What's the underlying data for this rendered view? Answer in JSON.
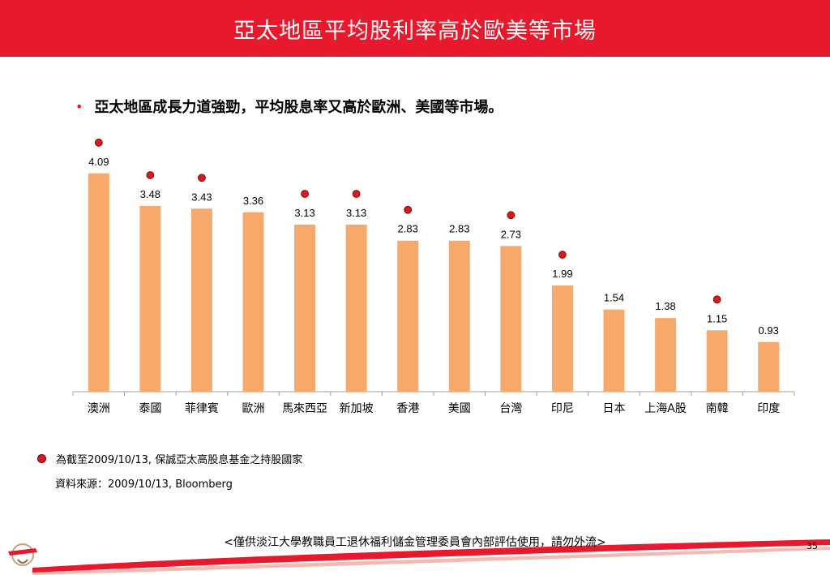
{
  "title": "亞太地區平均股利率高於歐美等市場",
  "bullet": "亞太地區成長力道強勁，平均股息率又高於歐洲、美國等市場。",
  "note": "為截至2009/10/13, 保誠亞太高股息基金之持股國家",
  "source": "資料來源：2009/10/13, Bloomberg",
  "footer": "<僅供淡江大學教職員工退休福利儲金管理委員會內部評估使用，請勿外流>",
  "page_number": "35",
  "colors": {
    "header": "#e8192c",
    "bar": "#f7a96b",
    "marker": "#d71920"
  },
  "chart_data": {
    "type": "bar",
    "categories": [
      "澳洲",
      "泰國",
      "菲律賓",
      "歐洲",
      "馬來西亞",
      "新加坡",
      "香港",
      "美國",
      "台灣",
      "印尼",
      "日本",
      "上海A股",
      "南韓",
      "印度"
    ],
    "values": [
      4.09,
      3.48,
      3.43,
      3.36,
      3.13,
      3.13,
      2.83,
      2.83,
      2.73,
      1.99,
      1.54,
      1.38,
      1.15,
      0.93
    ],
    "value_labels": [
      "4.09",
      "3.48",
      "3.43",
      "3.36",
      "3.13",
      "3.13",
      "2.83",
      "2.83",
      "2.73",
      "1.99",
      "1.54",
      "1.38",
      "1.15",
      "0.93"
    ],
    "holding_marker": [
      true,
      true,
      true,
      false,
      true,
      true,
      true,
      false,
      true,
      true,
      false,
      false,
      true,
      false
    ],
    "ylim": [
      0,
      4.3
    ],
    "grid": false,
    "legend": "none"
  }
}
